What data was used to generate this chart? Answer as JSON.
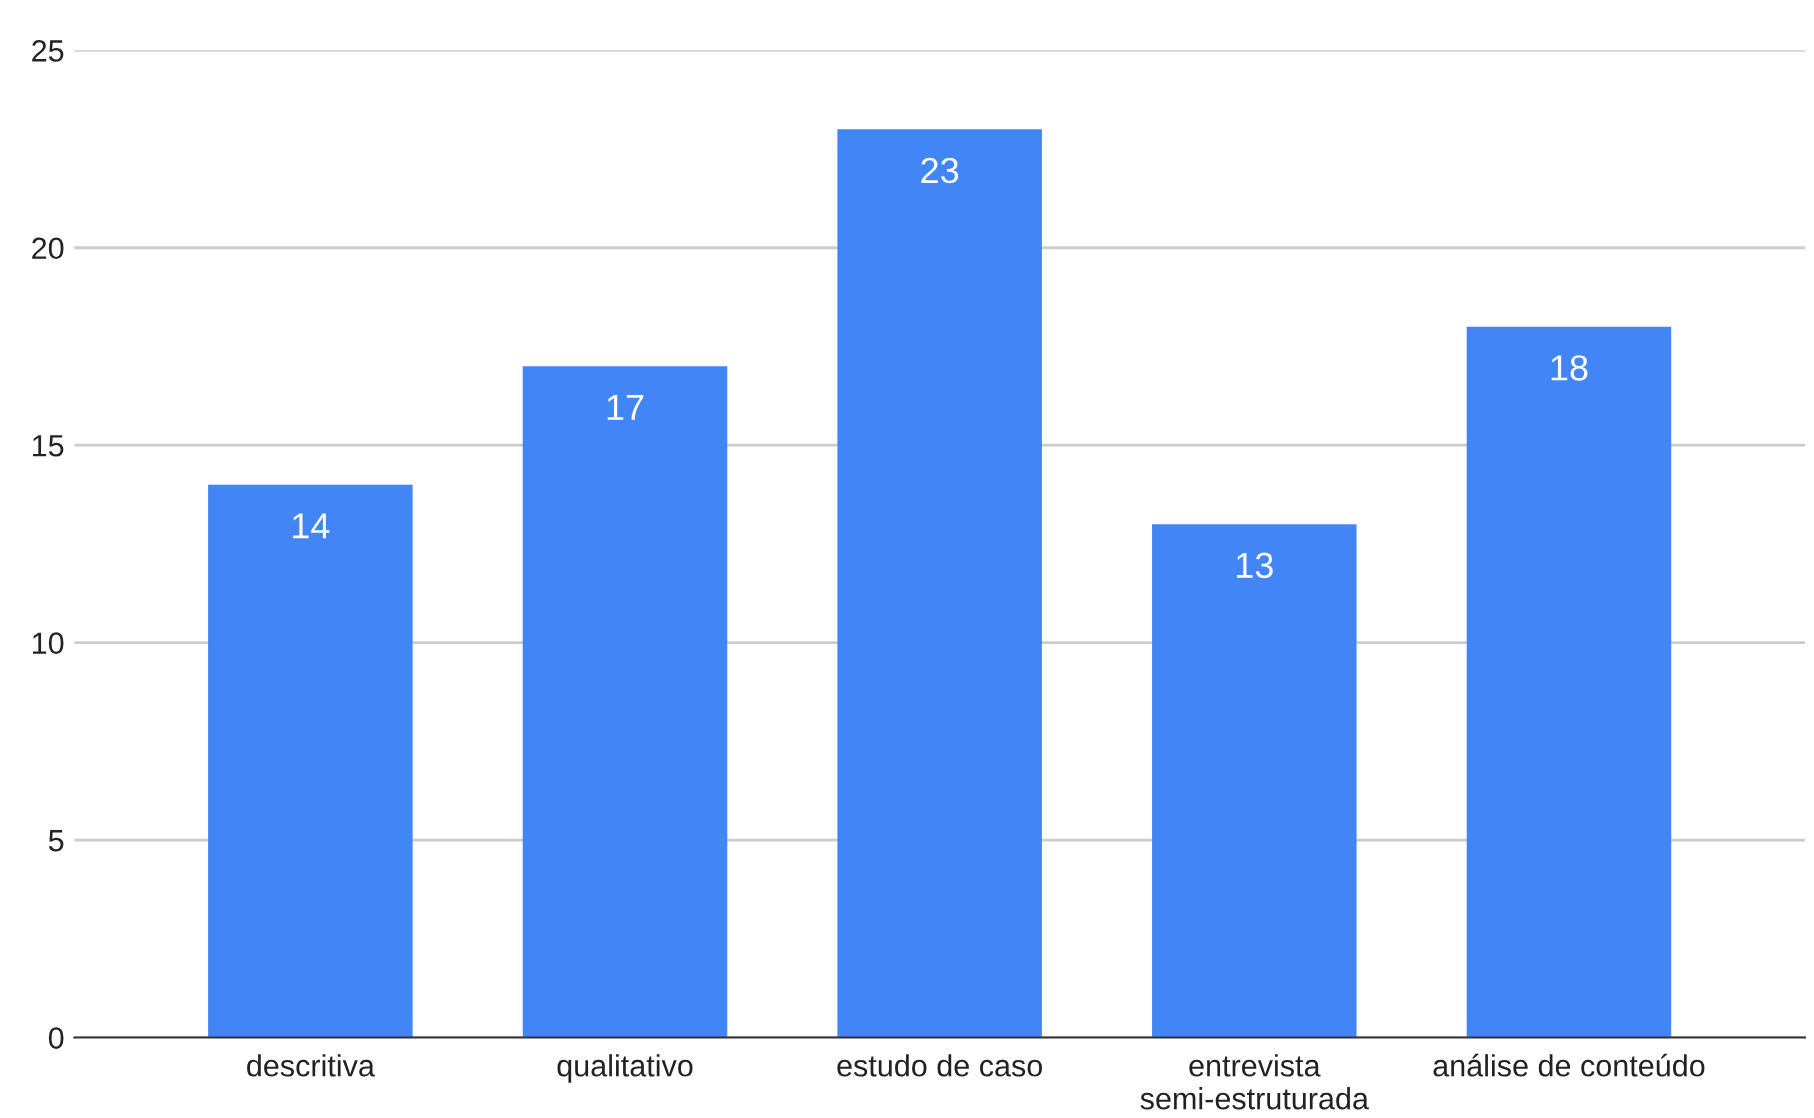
{
  "chart_data": {
    "type": "bar",
    "categories": [
      "descritiva",
      "qualitativo",
      "estudo de caso",
      "entrevista\nsemi-estruturada",
      "análise de conteúdo"
    ],
    "values": [
      14,
      17,
      23,
      13,
      18
    ],
    "color": "#4285f4",
    "ylim": [
      0,
      25
    ],
    "yticks": [
      0,
      5,
      10,
      15,
      20,
      25
    ],
    "grid": "y",
    "data_labels": true
  }
}
